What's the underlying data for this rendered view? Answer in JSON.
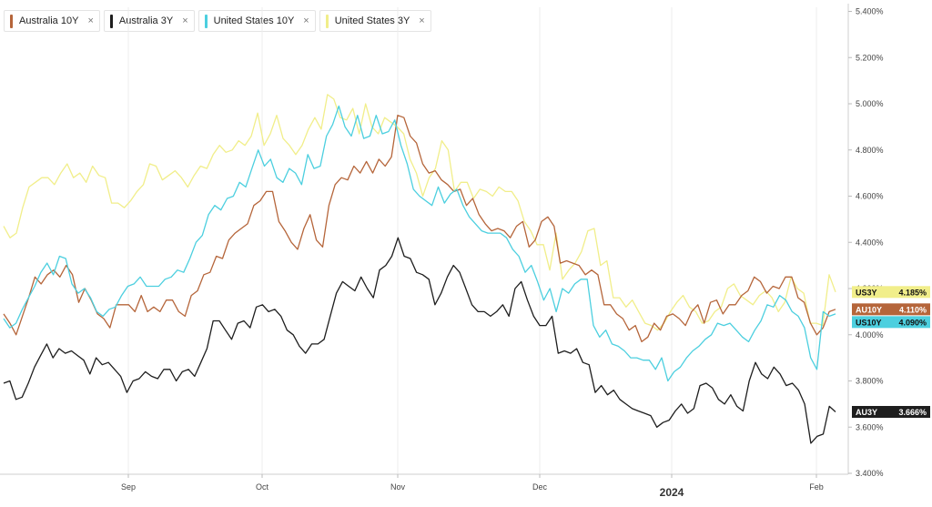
{
  "legend": [
    {
      "label": "Australia 10Y",
      "color": "#b5653a",
      "close_glyph": "×"
    },
    {
      "label": "Australia 3Y",
      "color": "#1e1e1e",
      "close_glyph": "×"
    },
    {
      "label": "United States 10Y",
      "color": "#4ccfdf",
      "close_glyph": "×"
    },
    {
      "label": "United States 3Y",
      "color": "#f1ee8a",
      "close_glyph": "×"
    }
  ],
  "chart_data": {
    "type": "line",
    "ylim": [
      3.4,
      5.4
    ],
    "y_ticks": [
      "5.400%",
      "5.200%",
      "5.000%",
      "4.800%",
      "4.600%",
      "4.400%",
      "4.200%",
      "4.000%",
      "3.800%",
      "3.600%",
      "3.400%"
    ],
    "x_ticks": [
      "Sep",
      "Oct",
      "Nov",
      "Dec",
      "2024",
      "Feb"
    ],
    "grid": "vertical",
    "series": [
      {
        "name": "United States 3Y",
        "short": "US3Y",
        "last": "4.185%",
        "color": "#f1ee8a",
        "values": [
          4.47,
          4.42,
          4.44,
          4.55,
          4.64,
          4.66,
          4.68,
          4.68,
          4.65,
          4.7,
          4.74,
          4.68,
          4.7,
          4.66,
          4.73,
          4.69,
          4.68,
          4.57,
          4.57,
          4.55,
          4.58,
          4.62,
          4.65,
          4.74,
          4.73,
          4.67,
          4.69,
          4.71,
          4.68,
          4.64,
          4.69,
          4.73,
          4.72,
          4.78,
          4.82,
          4.79,
          4.8,
          4.84,
          4.82,
          4.86,
          4.96,
          4.82,
          4.87,
          4.95,
          4.85,
          4.82,
          4.78,
          4.82,
          4.89,
          4.94,
          4.89,
          5.04,
          5.02,
          4.94,
          4.93,
          4.98,
          4.87,
          5.0,
          4.9,
          4.87,
          4.94,
          4.92,
          4.9,
          4.87,
          4.76,
          4.7,
          4.6,
          4.68,
          4.72,
          4.84,
          4.8,
          4.62,
          4.66,
          4.66,
          4.59,
          4.63,
          4.62,
          4.6,
          4.64,
          4.62,
          4.62,
          4.58,
          4.49,
          4.45,
          4.39,
          4.39,
          4.28,
          4.44,
          4.24,
          4.28,
          4.31,
          4.36,
          4.45,
          4.46,
          4.3,
          4.32,
          4.16,
          4.16,
          4.12,
          4.15,
          4.1,
          4.05,
          4.04,
          4.02,
          4.05,
          4.1,
          4.14,
          4.17,
          4.12,
          4.1,
          4.05,
          4.06,
          4.1,
          4.12,
          4.2,
          4.22,
          4.17,
          4.15,
          4.13,
          4.17,
          4.19,
          4.16,
          4.1,
          4.14,
          4.25,
          4.2,
          4.18,
          4.05,
          4.05,
          4.04,
          4.26,
          4.185
        ]
      },
      {
        "name": "Australia 10Y",
        "short": "AU10Y",
        "last": "4.110%",
        "color": "#b5653a",
        "values": [
          4.09,
          4.05,
          4.0,
          4.08,
          4.16,
          4.25,
          4.22,
          4.26,
          4.28,
          4.25,
          4.3,
          4.26,
          4.14,
          4.2,
          4.15,
          4.09,
          4.07,
          4.03,
          4.13,
          4.13,
          4.13,
          4.1,
          4.17,
          4.1,
          4.12,
          4.1,
          4.15,
          4.15,
          4.1,
          4.08,
          4.17,
          4.19,
          4.26,
          4.27,
          4.34,
          4.33,
          4.41,
          4.44,
          4.46,
          4.48,
          4.56,
          4.58,
          4.62,
          4.62,
          4.49,
          4.45,
          4.4,
          4.37,
          4.46,
          4.52,
          4.41,
          4.38,
          4.56,
          4.65,
          4.68,
          4.67,
          4.73,
          4.7,
          4.75,
          4.7,
          4.76,
          4.73,
          4.77,
          4.95,
          4.94,
          4.86,
          4.83,
          4.74,
          4.7,
          4.71,
          4.67,
          4.65,
          4.62,
          4.63,
          4.56,
          4.59,
          4.52,
          4.48,
          4.45,
          4.46,
          4.45,
          4.42,
          4.47,
          4.49,
          4.38,
          4.41,
          4.49,
          4.51,
          4.47,
          4.31,
          4.32,
          4.31,
          4.3,
          4.26,
          4.28,
          4.26,
          4.13,
          4.13,
          4.09,
          4.07,
          4.02,
          4.04,
          3.97,
          3.99,
          4.05,
          4.02,
          4.08,
          4.09,
          4.07,
          4.04,
          4.1,
          4.13,
          4.05,
          4.14,
          4.15,
          4.09,
          4.13,
          4.13,
          4.17,
          4.19,
          4.25,
          4.23,
          4.18,
          4.21,
          4.2,
          4.25,
          4.25,
          4.16,
          4.14,
          4.05,
          4.0,
          4.03,
          4.1,
          4.11
        ]
      },
      {
        "name": "United States 10Y",
        "short": "US10Y",
        "last": "4.090%",
        "color": "#4ccfdf",
        "values": [
          4.07,
          4.03,
          4.05,
          4.11,
          4.16,
          4.21,
          4.27,
          4.31,
          4.26,
          4.34,
          4.33,
          4.22,
          4.18,
          4.2,
          4.16,
          4.1,
          4.08,
          4.11,
          4.12,
          4.17,
          4.21,
          4.22,
          4.25,
          4.21,
          4.21,
          4.21,
          4.24,
          4.25,
          4.28,
          4.27,
          4.33,
          4.4,
          4.43,
          4.52,
          4.56,
          4.54,
          4.59,
          4.6,
          4.66,
          4.64,
          4.72,
          4.8,
          4.73,
          4.76,
          4.68,
          4.66,
          4.72,
          4.7,
          4.65,
          4.78,
          4.72,
          4.73,
          4.86,
          4.91,
          4.99,
          4.9,
          4.86,
          4.95,
          4.85,
          4.86,
          4.95,
          4.87,
          4.88,
          4.93,
          4.82,
          4.74,
          4.63,
          4.6,
          4.58,
          4.56,
          4.64,
          4.57,
          4.61,
          4.63,
          4.56,
          4.51,
          4.48,
          4.45,
          4.44,
          4.44,
          4.44,
          4.42,
          4.37,
          4.34,
          4.27,
          4.3,
          4.23,
          4.15,
          4.2,
          4.1,
          4.2,
          4.18,
          4.22,
          4.24,
          4.24,
          4.04,
          3.99,
          4.02,
          3.96,
          3.95,
          3.93,
          3.9,
          3.9,
          3.89,
          3.89,
          3.85,
          3.9,
          3.8,
          3.84,
          3.86,
          3.9,
          3.93,
          3.95,
          3.98,
          4.0,
          4.05,
          4.04,
          4.05,
          4.02,
          3.99,
          3.97,
          4.02,
          4.06,
          4.13,
          4.12,
          4.17,
          4.15,
          4.1,
          4.08,
          4.03,
          3.9,
          3.85,
          4.1,
          4.08,
          4.09
        ]
      },
      {
        "name": "Australia 3Y",
        "short": "AU3Y",
        "last": "3.666%",
        "color": "#1e1e1e",
        "values": [
          3.79,
          3.8,
          3.72,
          3.73,
          3.79,
          3.86,
          3.91,
          3.96,
          3.9,
          3.94,
          3.92,
          3.93,
          3.91,
          3.89,
          3.83,
          3.9,
          3.87,
          3.88,
          3.85,
          3.82,
          3.75,
          3.8,
          3.81,
          3.84,
          3.82,
          3.81,
          3.85,
          3.85,
          3.8,
          3.84,
          3.85,
          3.82,
          3.88,
          3.94,
          4.06,
          4.06,
          4.02,
          3.98,
          4.05,
          4.06,
          4.03,
          4.12,
          4.13,
          4.1,
          4.11,
          4.08,
          4.02,
          4.0,
          3.95,
          3.92,
          3.96,
          3.96,
          3.98,
          4.08,
          4.18,
          4.23,
          4.21,
          4.19,
          4.25,
          4.2,
          4.16,
          4.28,
          4.3,
          4.34,
          4.42,
          4.34,
          4.33,
          4.27,
          4.26,
          4.24,
          4.13,
          4.18,
          4.25,
          4.3,
          4.27,
          4.2,
          4.13,
          4.1,
          4.1,
          4.08,
          4.1,
          4.13,
          4.08,
          4.2,
          4.23,
          4.15,
          4.08,
          4.04,
          4.04,
          4.08,
          3.92,
          3.93,
          3.92,
          3.94,
          3.88,
          3.87,
          3.75,
          3.78,
          3.74,
          3.76,
          3.72,
          3.7,
          3.68,
          3.67,
          3.66,
          3.65,
          3.6,
          3.62,
          3.63,
          3.67,
          3.7,
          3.66,
          3.68,
          3.78,
          3.79,
          3.77,
          3.72,
          3.7,
          3.74,
          3.69,
          3.67,
          3.8,
          3.88,
          3.83,
          3.81,
          3.86,
          3.83,
          3.78,
          3.79,
          3.76,
          3.7,
          3.53,
          3.56,
          3.57,
          3.69,
          3.666
        ]
      }
    ]
  }
}
